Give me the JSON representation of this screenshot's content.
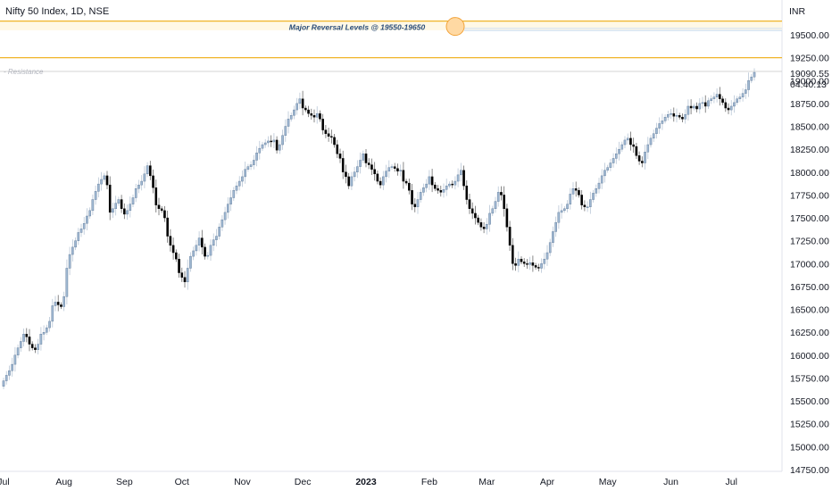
{
  "title": "Nifty 50 Index, 1D, NSE",
  "currency": "INR",
  "last_price": "19090.55",
  "countdown": "04:40:13",
  "colors": {
    "up": "#9fb7d1",
    "down": "#000000",
    "reversal_line": "#f0b429",
    "annotation_text": "#2a4d7a",
    "resistance_line": "#c9c9c9"
  },
  "chart_data": {
    "type": "candlestick",
    "title": "Nifty 50 Index, 1D, NSE",
    "ylim": [
      14650,
      19900
    ],
    "y_ticks": [
      "19500.00",
      "19250.00",
      "19000.00",
      "18750.00",
      "18500.00",
      "18250.00",
      "18000.00",
      "17750.00",
      "17500.00",
      "17250.00",
      "17000.00",
      "16750.00",
      "16500.00",
      "16250.00",
      "16000.00",
      "15750.00",
      "15500.00",
      "15250.00",
      "15000.00",
      "14750.00"
    ],
    "x_ticks": [
      {
        "label": "Jul",
        "pos": 0
      },
      {
        "label": "Aug",
        "pos": 21
      },
      {
        "label": "Sep",
        "pos": 42
      },
      {
        "label": "Oct",
        "pos": 62
      },
      {
        "label": "Nov",
        "pos": 83
      },
      {
        "label": "Dec",
        "pos": 104
      },
      {
        "label": "2023",
        "pos": 126,
        "bold": true
      },
      {
        "label": "Feb",
        "pos": 148
      },
      {
        "label": "Mar",
        "pos": 168
      },
      {
        "label": "Apr",
        "pos": 189
      },
      {
        "label": "May",
        "pos": 210
      },
      {
        "label": "Jun",
        "pos": 232
      },
      {
        "label": "Jul",
        "pos": 253
      }
    ],
    "annotations": {
      "reversal_label": "Major Reversal Levels @ 19550-19650",
      "reversal_levels": [
        19650,
        19550
      ],
      "resistance_label": "Resistance",
      "resistance_level": 19100
    },
    "closes": [
      15720,
      15780,
      15830,
      15900,
      16000,
      16080,
      16150,
      16230,
      16200,
      16120,
      16080,
      16060,
      16120,
      16230,
      16250,
      16300,
      16370,
      16540,
      16580,
      16550,
      16530,
      16640,
      16950,
      17100,
      17180,
      17250,
      17340,
      17380,
      17440,
      17520,
      17580,
      17700,
      17790,
      17870,
      17920,
      17960,
      17860,
      17560,
      17600,
      17660,
      17700,
      17600,
      17540,
      17580,
      17650,
      17720,
      17820,
      17860,
      17900,
      17980,
      18070,
      17960,
      17830,
      17640,
      17600,
      17580,
      17500,
      17300,
      17200,
      17120,
      17050,
      16900,
      16850,
      16800,
      16950,
      17080,
      17140,
      17200,
      17280,
      17180,
      17080,
      17090,
      17200,
      17260,
      17300,
      17400,
      17480,
      17560,
      17650,
      17720,
      17800,
      17850,
      17900,
      17950,
      18030,
      18060,
      18080,
      18130,
      18210,
      18260,
      18300,
      18320,
      18340,
      18330,
      18350,
      18240,
      18300,
      18400,
      18500,
      18580,
      18620,
      18680,
      18750,
      18800,
      18700,
      18680,
      18640,
      18620,
      18600,
      18640,
      18580,
      18460,
      18420,
      18390,
      18380,
      18300,
      18200,
      18150,
      18000,
      17950,
      17850,
      17950,
      18000,
      18060,
      18130,
      18200,
      18100,
      18080,
      18030,
      17980,
      17900,
      17860,
      17950,
      18010,
      18050,
      18060,
      18040,
      18010,
      18020,
      17900,
      17880,
      17800,
      17650,
      17620,
      17700,
      17780,
      17830,
      17870,
      17950,
      17860,
      17820,
      17800,
      17780,
      17810,
      17850,
      17870,
      17860,
      17900,
      17970,
      18020,
      17850,
      17700,
      17600,
      17550,
      17500,
      17450,
      17400,
      17380,
      17430,
      17550,
      17600,
      17680,
      17780,
      17750,
      17600,
      17400,
      17200,
      17000,
      16980,
      17050,
      17020,
      17000,
      16990,
      17010,
      16980,
      16960,
      16950,
      17000,
      17050,
      17120,
      17230,
      17350,
      17450,
      17560,
      17580,
      17600,
      17650,
      17760,
      17820,
      17800,
      17750,
      17640,
      17620,
      17620,
      17700,
      17770,
      17820,
      17880,
      17960,
      18020,
      18050,
      18100,
      18150,
      18200,
      18250,
      18300,
      18350,
      18370,
      18300,
      18280,
      18180,
      18120,
      18100,
      18220,
      18300,
      18370,
      18420,
      18480,
      18530,
      18560,
      18600,
      18630,
      18640,
      18610,
      18620,
      18600,
      18580,
      18630,
      18720,
      18700,
      18720,
      18690,
      18750,
      18760,
      18720,
      18780,
      18800,
      18820,
      18850,
      18800,
      18760,
      18700,
      18680,
      18720,
      18760,
      18800,
      18820,
      18860,
      18900,
      19000,
      19040,
      19090
    ]
  }
}
